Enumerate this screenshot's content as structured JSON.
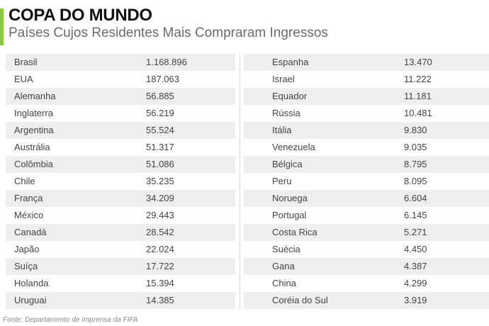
{
  "header": {
    "title": "COPA DO MUNDO",
    "subtitle": "Países Cujos Residentes Mais Compraram Ingressos"
  },
  "colors": {
    "accent": "#8dc63f",
    "row_shade": "#eeeeee"
  },
  "table": {
    "left": [
      {
        "country": "Brasil",
        "value": "1.168.896"
      },
      {
        "country": "EUA",
        "value": "187.063"
      },
      {
        "country": "Alemanha",
        "value": "56.885"
      },
      {
        "country": "Inglaterra",
        "value": "56.219"
      },
      {
        "country": "Argentina",
        "value": "55.524"
      },
      {
        "country": "Austrália",
        "value": "51.317"
      },
      {
        "country": "Colômbia",
        "value": "51.086"
      },
      {
        "country": "Chile",
        "value": "35.235"
      },
      {
        "country": "França",
        "value": "34.209"
      },
      {
        "country": "México",
        "value": "29.443"
      },
      {
        "country": "Canadá",
        "value": "28.542"
      },
      {
        "country": "Japão",
        "value": "22.024"
      },
      {
        "country": "Suíça",
        "value": "17.722"
      },
      {
        "country": "Holanda",
        "value": "15.394"
      },
      {
        "country": "Uruguai",
        "value": "14.385"
      }
    ],
    "right": [
      {
        "country": "Espanha",
        "value": "13.470"
      },
      {
        "country": "Israel",
        "value": "11.222"
      },
      {
        "country": "Equador",
        "value": "11.181"
      },
      {
        "country": "Rússia",
        "value": "10.481"
      },
      {
        "country": "Itália",
        "value": "9.830"
      },
      {
        "country": "Venezuela",
        "value": "9.035"
      },
      {
        "country": "Bélgica",
        "value": "8.795"
      },
      {
        "country": "Peru",
        "value": "8.095"
      },
      {
        "country": "Noruega",
        "value": "6.604"
      },
      {
        "country": "Portugal",
        "value": "6.145"
      },
      {
        "country": "Costa Rica",
        "value": "5.271"
      },
      {
        "country": "Suécia",
        "value": "4.450"
      },
      {
        "country": "Gana",
        "value": "4.387"
      },
      {
        "country": "China",
        "value": "4.299"
      },
      {
        "country": "Coréia do Sul",
        "value": "3.919"
      }
    ]
  },
  "footer": {
    "source": "Fonte: Departamento de Imprensa da FIFA"
  }
}
